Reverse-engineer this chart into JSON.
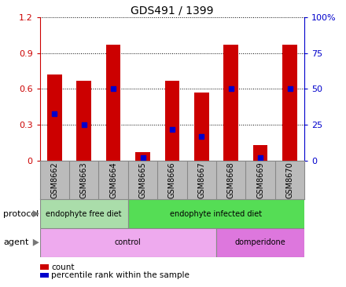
{
  "title": "GDS491 / 1399",
  "samples": [
    "GSM8662",
    "GSM8663",
    "GSM8664",
    "GSM8665",
    "GSM8666",
    "GSM8667",
    "GSM8668",
    "GSM8669",
    "GSM8670"
  ],
  "count_values": [
    0.72,
    0.67,
    0.97,
    0.07,
    0.67,
    0.57,
    0.97,
    0.13,
    0.97
  ],
  "percentile_values": [
    33,
    25,
    50,
    2,
    22,
    17,
    50,
    2,
    50
  ],
  "ylim_left": [
    0,
    1.2
  ],
  "ylim_right": [
    0,
    100
  ],
  "yticks_left": [
    0,
    0.3,
    0.6,
    0.9,
    1.2
  ],
  "yticks_right": [
    0,
    25,
    50,
    75,
    100
  ],
  "ytick_labels_left": [
    "0",
    "0.3",
    "0.6",
    "0.9",
    "1.2"
  ],
  "ytick_labels_right": [
    "0",
    "25",
    "50",
    "75",
    "100%"
  ],
  "bar_color": "#cc0000",
  "dot_color": "#0000cc",
  "bar_width": 0.5,
  "protocol_groups": [
    {
      "label": "endophyte free diet",
      "start": 0,
      "end": 3,
      "color": "#aaddaa"
    },
    {
      "label": "endophyte infected diet",
      "start": 3,
      "end": 9,
      "color": "#55dd55"
    }
  ],
  "agent_groups": [
    {
      "label": "control",
      "start": 0,
      "end": 6,
      "color": "#eeaaee"
    },
    {
      "label": "domperidone",
      "start": 6,
      "end": 9,
      "color": "#dd77dd"
    }
  ],
  "protocol_label": "protocol",
  "agent_label": "agent",
  "legend_count_label": "count",
  "legend_percentile_label": "percentile rank within the sample",
  "title_fontsize": 10,
  "tick_fontsize": 8,
  "label_fontsize": 8,
  "bar_fontsize": 7,
  "bg_color": "#ffffff",
  "tick_area_bg": "#bbbbbb",
  "border_color": "#888888"
}
